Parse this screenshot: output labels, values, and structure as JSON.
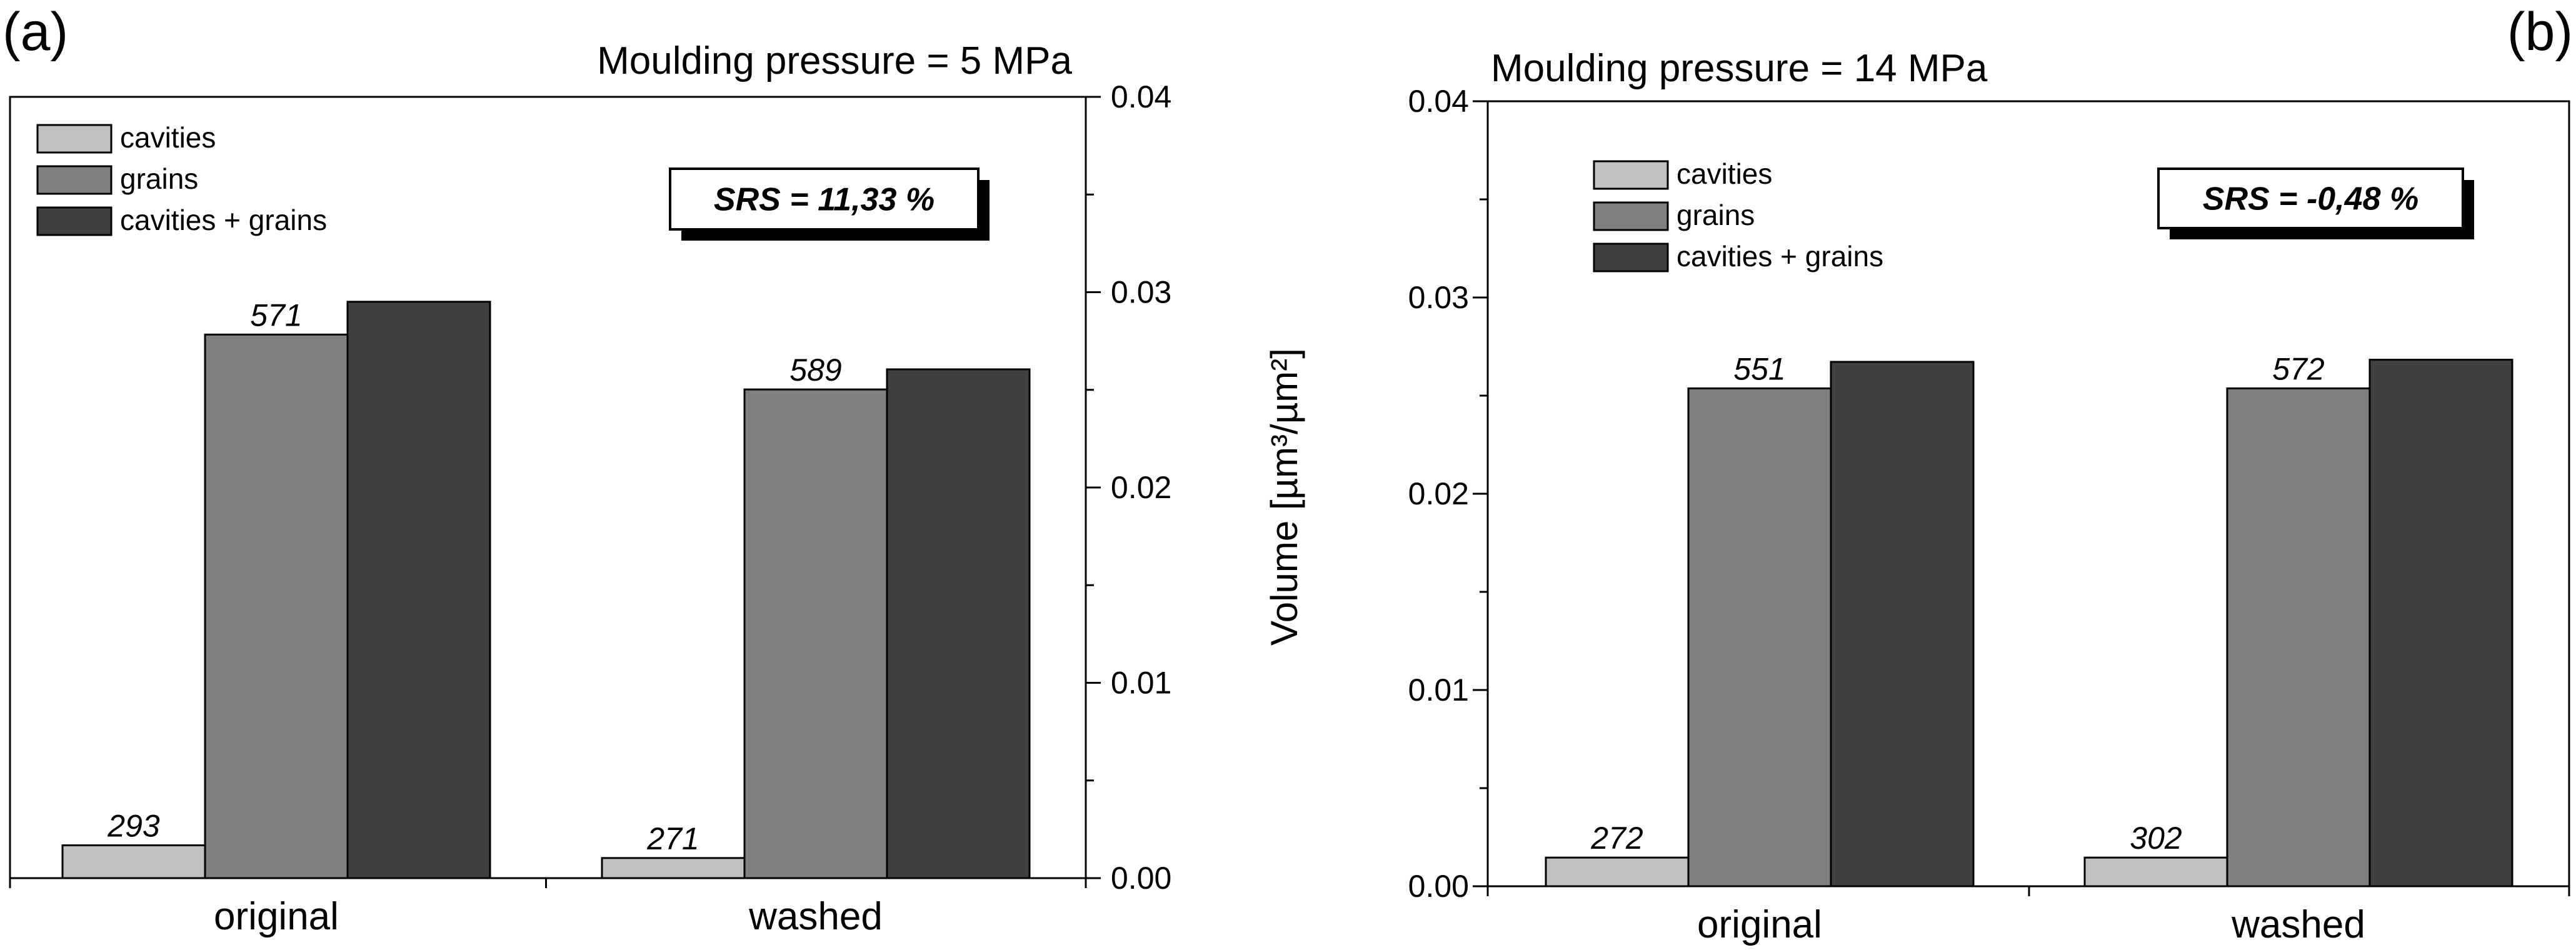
{
  "colors": {
    "cavities": "#c0c0c0",
    "grains": "#808080",
    "cavities_grains": "#404040",
    "axis": "#000000",
    "background": "#ffffff"
  },
  "axis_title": "Volume [µm³/µm²]",
  "chart_data": [
    {
      "type": "bar",
      "panel_label": "(a)",
      "title": "Moulding pressure = 5 MPa",
      "categories": [
        "original",
        "washed"
      ],
      "series": [
        {
          "name": "cavities",
          "values": [
            0.00168,
            0.00103
          ]
        },
        {
          "name": "grains",
          "values": [
            0.02783,
            0.02502
          ]
        },
        {
          "name": "cavities + grains",
          "values": [
            0.02951,
            0.02605
          ]
        }
      ],
      "data_labels": {
        "cavities": [
          "293",
          "271"
        ],
        "grains": [
          "571",
          "589"
        ]
      },
      "annotation": "SRS = 11,33 %",
      "ylabel": "Volume [µm³/µm²]",
      "ylim": [
        0,
        0.04
      ],
      "yticks": [
        "0.00",
        "0.01",
        "0.02",
        "0.03",
        "0.04"
      ],
      "y_axis_side": "right",
      "legend": [
        "cavities",
        "grains",
        "cavities + grains"
      ],
      "legend_position": "top-left"
    },
    {
      "type": "bar",
      "panel_label": "(b)",
      "title": "Moulding pressure = 14 MPa",
      "categories": [
        "original",
        "washed"
      ],
      "series": [
        {
          "name": "cavities",
          "values": [
            0.00146,
            0.00146
          ]
        },
        {
          "name": "grains",
          "values": [
            0.02537,
            0.02537
          ]
        },
        {
          "name": "cavities + grains",
          "values": [
            0.02672,
            0.02683
          ]
        }
      ],
      "data_labels": {
        "cavities": [
          "272",
          "302"
        ],
        "grains": [
          "551",
          "572"
        ]
      },
      "annotation": "SRS = -0,48 %",
      "ylabel": "Volume [µm³/µm²]",
      "ylim": [
        0,
        0.04
      ],
      "yticks": [
        "0.00",
        "0.01",
        "0.02",
        "0.03",
        "0.04"
      ],
      "y_axis_side": "left",
      "legend": [
        "cavities",
        "grains",
        "cavities + grains"
      ],
      "legend_position": "top-left"
    }
  ]
}
